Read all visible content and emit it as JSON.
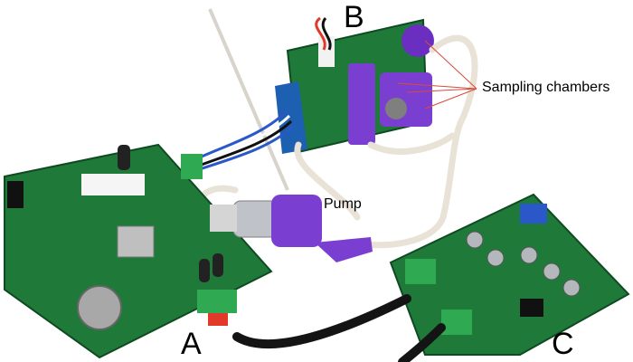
{
  "labels": {
    "a": "A",
    "b": "B",
    "c": "C",
    "pump": "Pump",
    "chambers": "Sampling chambers"
  },
  "colors": {
    "pcb_green": "#1f7a3a",
    "pcb_dark": "#145c2a",
    "purple": "#7a3fd0",
    "tube": "#e9e2d6",
    "connector_green": "#2faa52",
    "cable_black": "#141414",
    "pointer_red": "#d94a3a"
  },
  "icons": {
    "board_a": "main-controller-board",
    "board_b": "sampling-chamber-board",
    "board_c": "interface-board",
    "pump": "purple-pump"
  }
}
